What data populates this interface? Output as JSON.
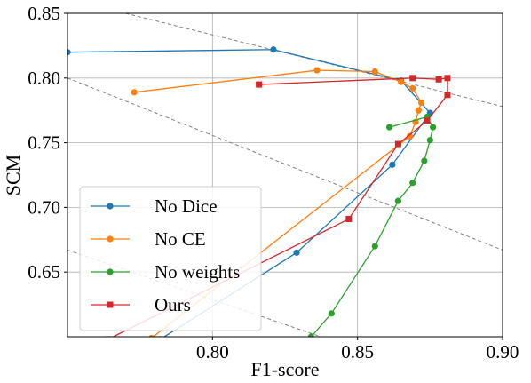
{
  "chart_data": {
    "type": "line",
    "xlabel": "F1-score",
    "ylabel": "SCM",
    "xlim": [
      0.75,
      0.9
    ],
    "ylim": [
      0.6,
      0.85
    ],
    "xticks": [
      0.8,
      0.85,
      0.9
    ],
    "xtick_labels": [
      "0.80",
      "0.85",
      "0.90"
    ],
    "yticks": [
      0.65,
      0.7,
      0.75,
      0.8,
      0.85
    ],
    "ytick_labels": [
      "0.65",
      "0.70",
      "0.75",
      "0.80",
      "0.85"
    ],
    "grid": true,
    "legend_position": "lower-left",
    "reference_lines": [
      {
        "points": [
          [
            0.77,
            0.85
          ],
          [
            0.9,
            0.778
          ]
        ]
      },
      {
        "points": [
          [
            0.75,
            0.8
          ],
          [
            0.9,
            0.667
          ]
        ]
      },
      {
        "points": [
          [
            0.75,
            0.667
          ],
          [
            0.9,
            0.552
          ]
        ]
      }
    ],
    "series": [
      {
        "name": "No Dice",
        "color": "#1f77b4",
        "marker": "circle",
        "points": [
          [
            0.75,
            0.82
          ],
          [
            0.821,
            0.822
          ],
          [
            0.865,
            0.798
          ],
          [
            0.875,
            0.773
          ],
          [
            0.862,
            0.733
          ],
          [
            0.829,
            0.665
          ],
          [
            0.782,
            0.598
          ]
        ]
      },
      {
        "name": "No CE",
        "color": "#ff7f0e",
        "marker": "circle",
        "points": [
          [
            0.773,
            0.789
          ],
          [
            0.836,
            0.806
          ],
          [
            0.856,
            0.805
          ],
          [
            0.865,
            0.797
          ],
          [
            0.869,
            0.792
          ],
          [
            0.872,
            0.781
          ],
          [
            0.871,
            0.775
          ],
          [
            0.87,
            0.766
          ],
          [
            0.868,
            0.755
          ],
          [
            0.779,
            0.599
          ]
        ]
      },
      {
        "name": "No weights",
        "color": "#2ca02c",
        "marker": "circle",
        "points": [
          [
            0.861,
            0.762
          ],
          [
            0.874,
            0.77
          ],
          [
            0.876,
            0.762
          ],
          [
            0.875,
            0.752
          ],
          [
            0.873,
            0.736
          ],
          [
            0.869,
            0.719
          ],
          [
            0.864,
            0.705
          ],
          [
            0.856,
            0.67
          ],
          [
            0.841,
            0.618
          ],
          [
            0.834,
            0.6
          ]
        ]
      },
      {
        "name": "Ours",
        "color": "#d62728",
        "marker": "square",
        "points": [
          [
            0.816,
            0.795
          ],
          [
            0.869,
            0.8
          ],
          [
            0.878,
            0.799
          ],
          [
            0.881,
            0.8
          ],
          [
            0.881,
            0.787
          ],
          [
            0.874,
            0.767
          ],
          [
            0.864,
            0.749
          ],
          [
            0.847,
            0.691
          ],
          [
            0.764,
            0.598
          ]
        ]
      }
    ]
  }
}
